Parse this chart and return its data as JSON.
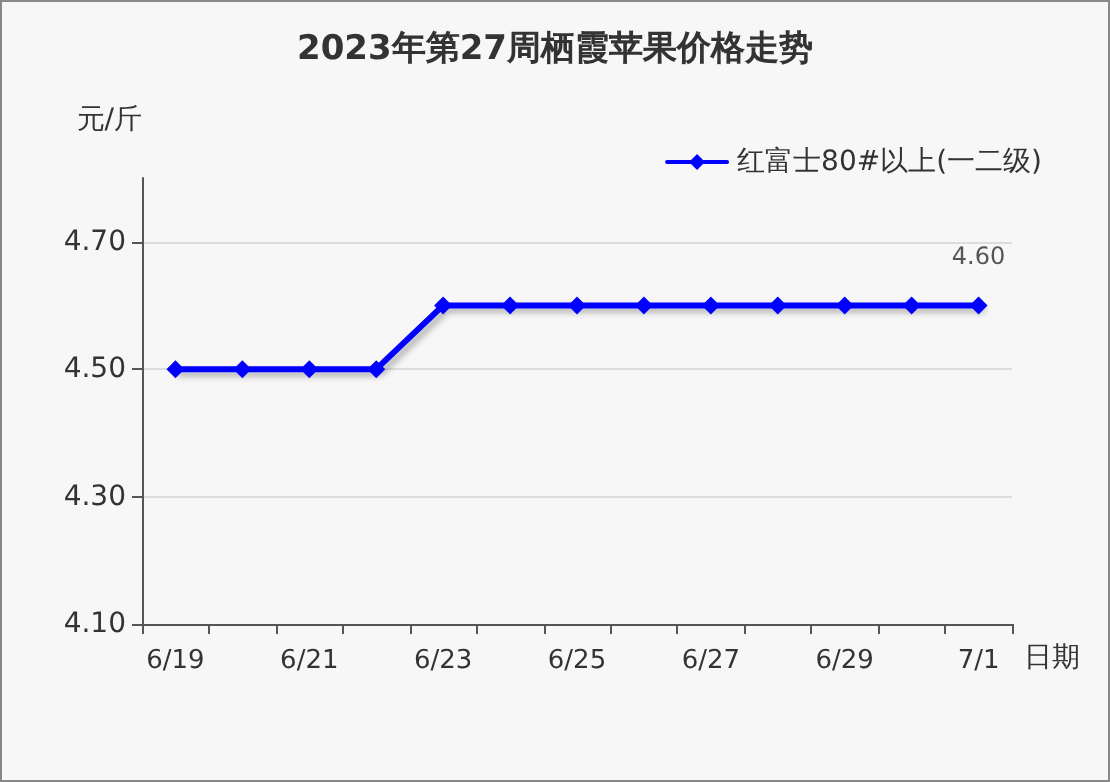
{
  "chart_data": {
    "type": "line",
    "title": "2023年第27周栖霞苹果价格走势",
    "xlabel": "日期",
    "ylabel": "元/斤",
    "categories": [
      "6/19",
      null,
      "6/21",
      null,
      "6/23",
      null,
      "6/25",
      null,
      "6/27",
      null,
      "6/29",
      null,
      "7/1"
    ],
    "series": [
      {
        "name": "红富士80#以上(一二级)",
        "color": "#0000ff",
        "values": [
          4.5,
          4.5,
          4.5,
          4.5,
          4.6,
          4.6,
          4.6,
          4.6,
          4.6,
          4.6,
          4.6,
          4.6,
          4.6
        ],
        "value_labels": [
          null,
          null,
          null,
          null,
          null,
          null,
          null,
          null,
          null,
          null,
          null,
          null,
          "4.60"
        ]
      }
    ],
    "ylim": [
      4.1,
      4.8
    ],
    "yticks": [
      {
        "value": 4.1,
        "label": "4.10"
      },
      {
        "value": 4.3,
        "label": "4.30"
      },
      {
        "value": 4.5,
        "label": "4.50"
      },
      {
        "value": 4.7,
        "label": "4.70"
      }
    ],
    "grid": "y",
    "legend": "top right",
    "marker": "diamond",
    "line_style": "solid"
  }
}
